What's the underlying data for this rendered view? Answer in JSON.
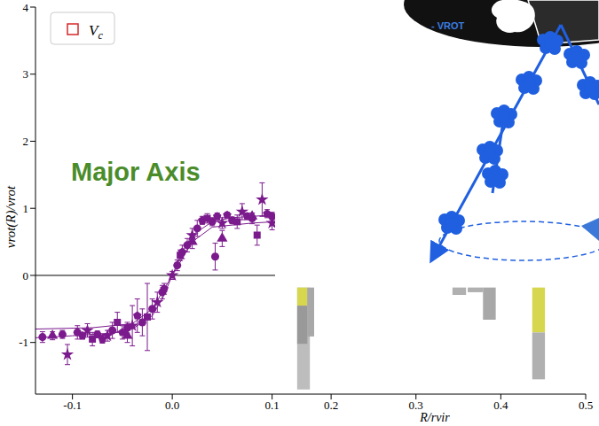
{
  "chart_data": [
    {
      "type": "scatter",
      "annotation": "Major Axis",
      "y_label": "vrot(R)/vrot",
      "xlim": [
        -0.137,
        0.103
      ],
      "xticks": [
        -0.1,
        {
          "value": 0,
          "label": "0.0"
        },
        0.1
      ],
      "ylim": [
        -1.77,
        4
      ],
      "yticks": [
        -1,
        0,
        1,
        2,
        3,
        4
      ],
      "legend": "upper left",
      "reference_line": 0,
      "series": [
        {
          "type": "line",
          "color": "#7b1a8c",
          "x": [
            -0.137,
            -0.1,
            -0.06,
            -0.04,
            -0.02,
            -0.01,
            0,
            0.01,
            0.02,
            0.04,
            0.06,
            0.1,
            0.103
          ],
          "values": [
            -0.93,
            -0.9,
            -0.86,
            -0.8,
            -0.6,
            -0.35,
            0,
            0.35,
            0.6,
            0.8,
            0.86,
            0.9,
            0.9
          ]
        },
        {
          "type": "line",
          "color": "#7b1a8c",
          "x": [
            -0.137,
            -0.08,
            -0.04,
            -0.02,
            0,
            0.02,
            0.04,
            0.08,
            0.103
          ],
          "values": [
            -0.8,
            -0.78,
            -0.72,
            -0.5,
            0,
            0.5,
            0.72,
            0.78,
            0.8
          ]
        },
        {
          "type": "scatter",
          "marker": "circle",
          "color": "#7b1a8c",
          "x": [
            -0.13,
            -0.11,
            -0.095,
            -0.075,
            -0.06,
            -0.045,
            -0.03,
            -0.02,
            -0.01,
            0.005,
            0.015,
            0.025,
            0.04,
            0.043,
            0.06,
            0.08,
            0.1
          ],
          "values": [
            -0.92,
            -0.88,
            -0.85,
            -0.88,
            -0.82,
            -0.78,
            -0.7,
            -0.5,
            -0.25,
            0.15,
            0.45,
            0.7,
            0.8,
            0.28,
            0.82,
            0.85,
            0.88
          ],
          "errors": [
            0.08,
            0.06,
            0.1,
            0.05,
            0.12,
            0.08,
            0.2,
            0.15,
            0.1,
            0.08,
            0.1,
            0.12,
            0.06,
            0.2,
            0.05,
            0.08,
            0.06
          ]
        },
        {
          "type": "scatter",
          "marker": "star",
          "color": "#7b1a8c",
          "x": [
            -0.105,
            -0.085,
            -0.065,
            -0.04,
            -0.015,
            0.0,
            0.02,
            0.05,
            0.07,
            0.09,
            0.1
          ],
          "values": [
            -1.18,
            -0.82,
            -0.9,
            -0.75,
            -0.4,
            0.0,
            0.6,
            0.78,
            0.95,
            1.13,
            0.78
          ],
          "errors": [
            0.15,
            0.1,
            0.08,
            0.3,
            0.15,
            0.06,
            0.1,
            0.08,
            0.12,
            0.25,
            0.1
          ]
        },
        {
          "type": "scatter",
          "marker": "pentagon",
          "color": "#7b1a8c",
          "x": [
            -0.09,
            -0.07,
            -0.05,
            -0.035,
            -0.008,
            0.01,
            0.03,
            0.045,
            0.055,
            0.075,
            0.095
          ],
          "values": [
            -0.9,
            -0.95,
            -0.85,
            -0.6,
            -0.2,
            0.35,
            0.82,
            0.88,
            0.9,
            0.88,
            0.92
          ],
          "errors": [
            0.05,
            0.06,
            0.1,
            0.25,
            0.08,
            0.1,
            0.06,
            0.05,
            0.04,
            0.05,
            0.06
          ]
        },
        {
          "type": "scatter",
          "marker": "square",
          "color": "#7b1a8c",
          "x": [
            -0.08,
            -0.055,
            -0.025,
            0.008,
            0.035,
            0.065,
            0.085
          ],
          "values": [
            -0.95,
            -0.7,
            -0.62,
            0.3,
            0.85,
            0.8,
            0.6
          ],
          "errors": [
            0.1,
            0.15,
            0.5,
            0.08,
            0.07,
            0.1,
            0.15
          ]
        },
        {
          "type": "scatter",
          "marker": "triangle",
          "color": "#7b1a8c",
          "x": [
            -0.12,
            -0.045,
            0.02,
            0.05,
            0.08
          ],
          "values": [
            -0.9,
            -0.9,
            0.5,
            0.55,
            0.88
          ],
          "errors": [
            0.06,
            0.1,
            0.1,
            0.12,
            0.05
          ]
        },
        {
          "type": "scatter",
          "name": "Vc",
          "marker": "square",
          "color": "#d62728",
          "x": [],
          "values": []
        }
      ]
    },
    {
      "type": "bar",
      "x_label": "R/rvir",
      "xlim": [
        0.134,
        0.5
      ],
      "xticks": [
        0.2,
        0.3,
        0.4,
        0.5
      ],
      "ylim": [
        -1.77,
        -0.145
      ],
      "tick_labels": "x",
      "bars": [
        {
          "x": [
            0.16,
            0.175
          ],
          "range": [
            -1.7,
            -0.18
          ],
          "color": "#bdbdbd"
        },
        {
          "x": [
            0.16,
            0.172
          ],
          "range": [
            -1.02,
            -0.45
          ],
          "color": "#999999"
        },
        {
          "x": [
            0.16,
            0.172
          ],
          "range": [
            -0.45,
            -0.18
          ],
          "color": "#d6d64f"
        },
        {
          "x": [
            0.172,
            0.18
          ],
          "range": [
            -0.91,
            -0.18
          ],
          "color": "#a8a8a8"
        },
        {
          "x": [
            0.343,
            0.359
          ],
          "range": [
            -0.29,
            -0.18
          ],
          "color": "#b0b0b0"
        },
        {
          "x": [
            0.361,
            0.379
          ],
          "range": [
            -0.25,
            -0.18
          ],
          "color": "#b0b0b0"
        },
        {
          "x": [
            0.379,
            0.394
          ],
          "range": [
            -0.66,
            -0.18
          ],
          "color": "#a8a8a8"
        },
        {
          "x": [
            0.437,
            0.452
          ],
          "range": [
            -0.85,
            -0.18
          ],
          "color": "#d6d64f"
        },
        {
          "x": [
            0.437,
            0.452
          ],
          "range": [
            -1.55,
            -0.85
          ],
          "color": "#b0b0b0"
        }
      ]
    }
  ],
  "diagram": {
    "label": "- VROT"
  }
}
